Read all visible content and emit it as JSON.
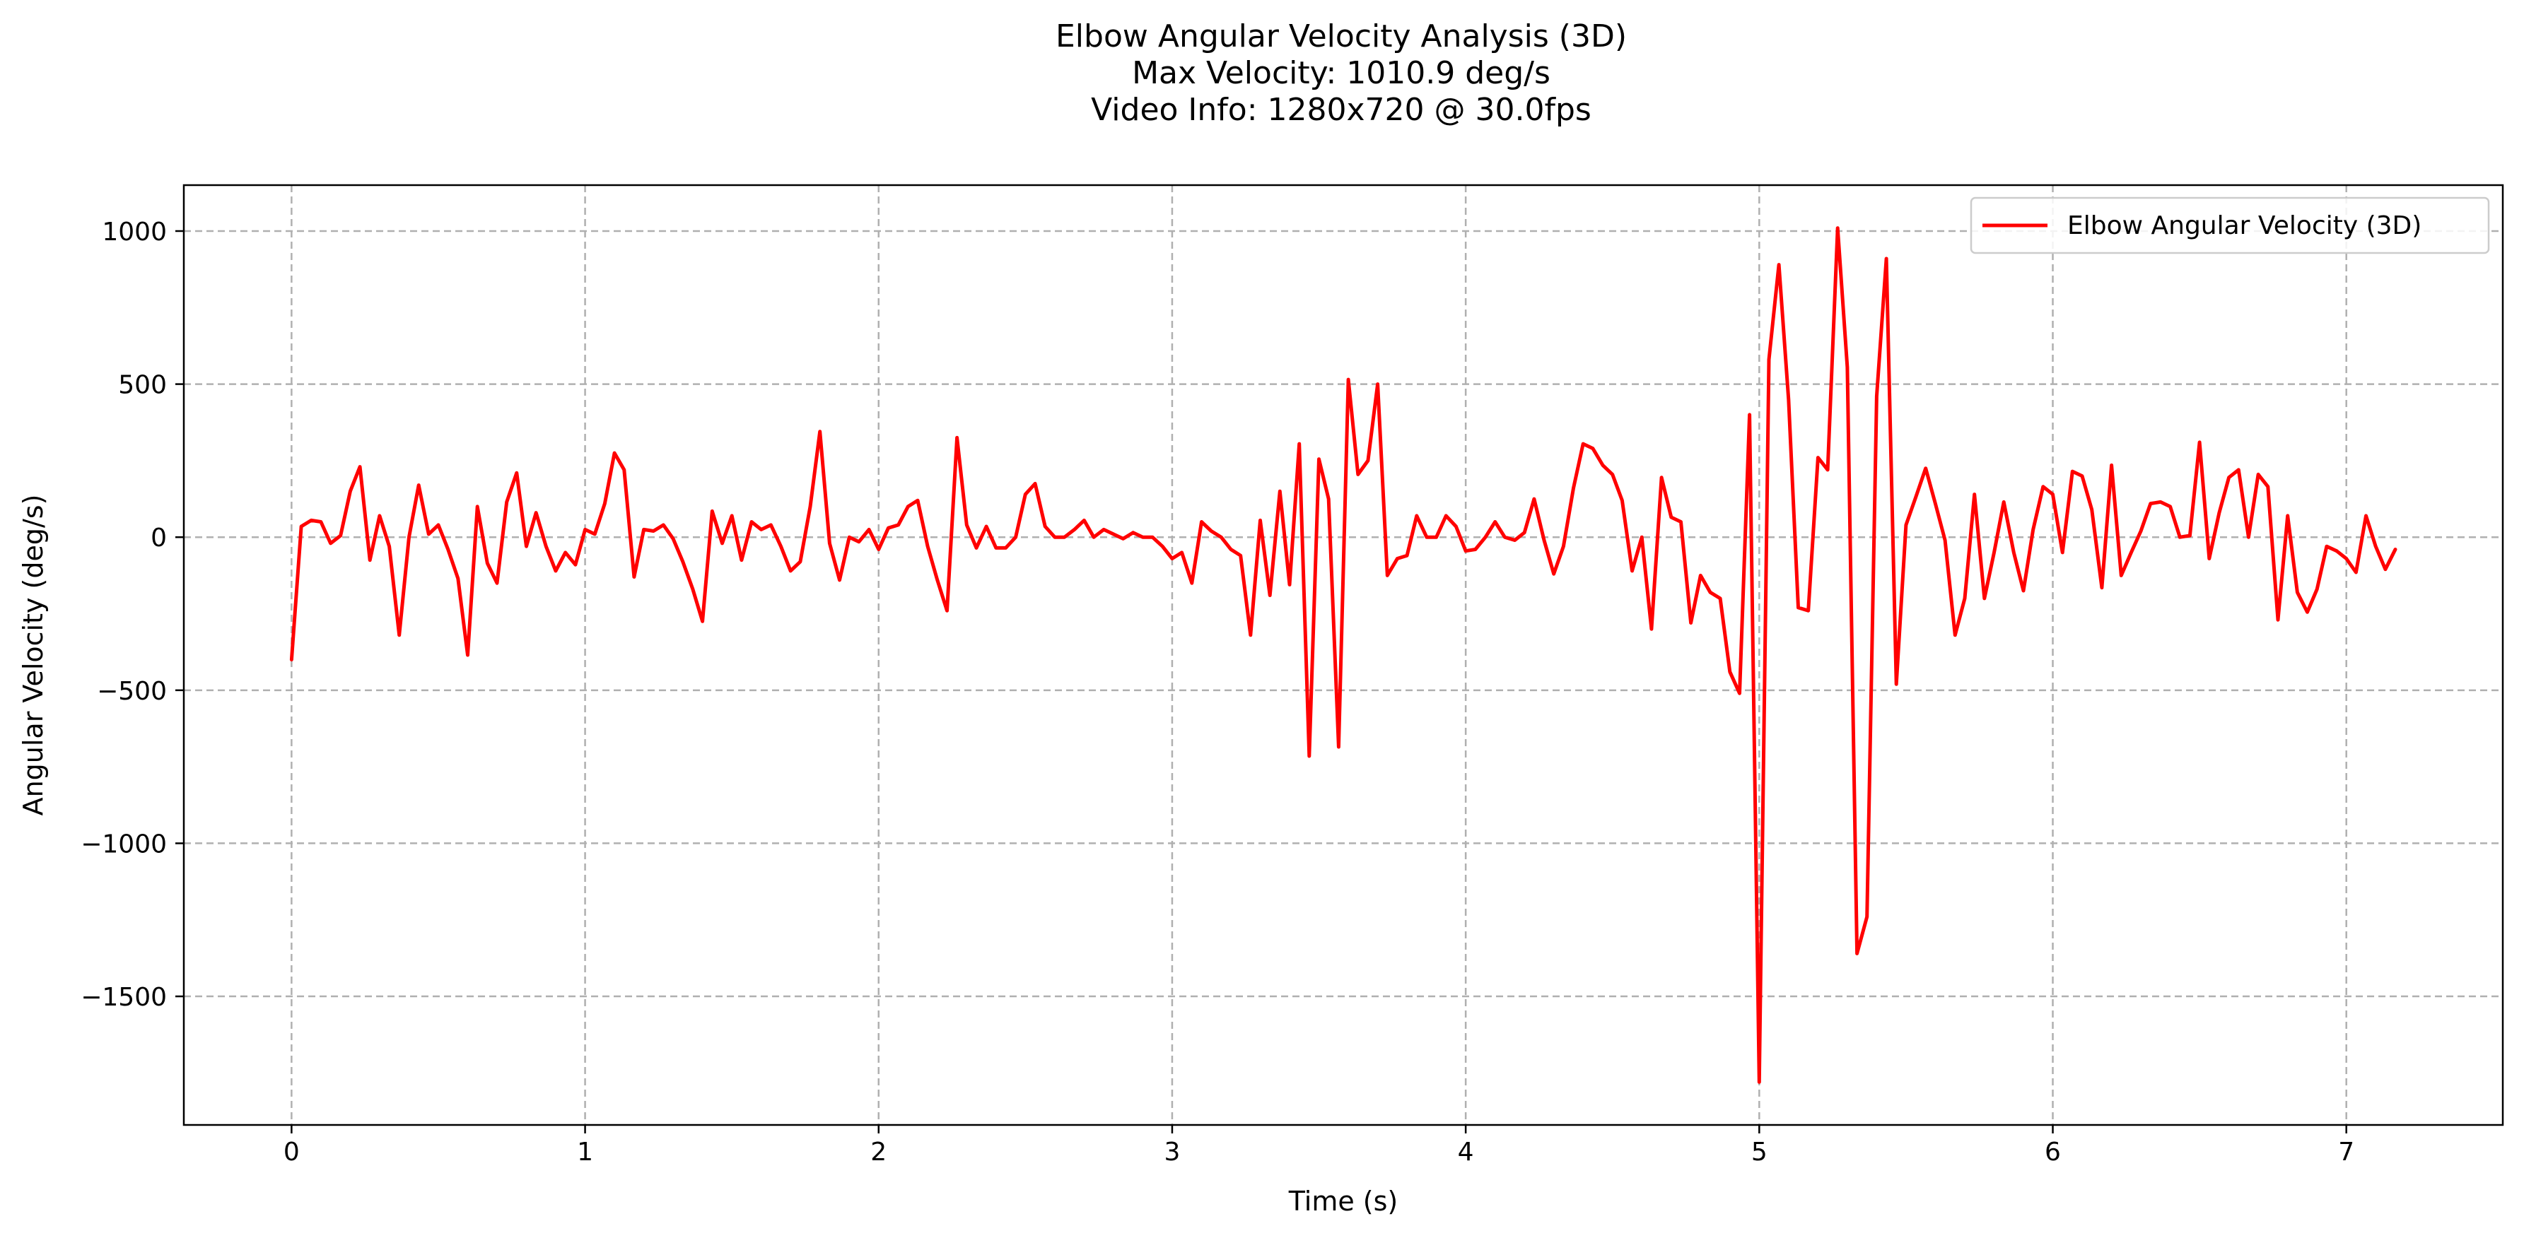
{
  "chart_data": {
    "type": "line",
    "title": [
      "Elbow Angular Velocity Analysis (3D)",
      "Max Velocity: 1010.9 deg/s",
      "Video Info: 1280x720 @ 30.0fps"
    ],
    "xlabel": "Time (s)",
    "ylabel": "Angular Velocity (deg/s)",
    "xlim": [
      -0.367,
      7.533
    ],
    "ylim": [
      -1920,
      1150
    ],
    "xticks": [
      0,
      1,
      2,
      3,
      4,
      5,
      6,
      7
    ],
    "yticks": [
      1000,
      500,
      0,
      -500,
      -1000,
      -1500
    ],
    "ytick_labels": [
      "1000",
      "500",
      "0",
      "−500",
      "−1000",
      "−1500"
    ],
    "grid": true,
    "legend": "upper-right",
    "series": [
      {
        "name": "Elbow Angular Velocity (3D)",
        "color": "#ff0000",
        "x": [
          0.0,
          0.033,
          0.067,
          0.1,
          0.133,
          0.167,
          0.2,
          0.233,
          0.267,
          0.3,
          0.333,
          0.367,
          0.4,
          0.433,
          0.467,
          0.5,
          0.533,
          0.567,
          0.6,
          0.633,
          0.667,
          0.7,
          0.733,
          0.767,
          0.8,
          0.833,
          0.867,
          0.9,
          0.933,
          0.967,
          1.0,
          1.033,
          1.067,
          1.1,
          1.133,
          1.167,
          1.2,
          1.233,
          1.267,
          1.3,
          1.333,
          1.367,
          1.4,
          1.433,
          1.467,
          1.5,
          1.533,
          1.567,
          1.6,
          1.633,
          1.667,
          1.7,
          1.733,
          1.767,
          1.8,
          1.833,
          1.867,
          1.9,
          1.933,
          1.967,
          2.0,
          2.033,
          2.067,
          2.1,
          2.133,
          2.167,
          2.2,
          2.233,
          2.267,
          2.3,
          2.333,
          2.367,
          2.4,
          2.433,
          2.467,
          2.5,
          2.533,
          2.567,
          2.6,
          2.633,
          2.667,
          2.7,
          2.733,
          2.767,
          2.8,
          2.833,
          2.867,
          2.9,
          2.933,
          2.967,
          3.0,
          3.033,
          3.067,
          3.1,
          3.133,
          3.167,
          3.2,
          3.233,
          3.267,
          3.3,
          3.333,
          3.367,
          3.4,
          3.433,
          3.467,
          3.5,
          3.533,
          3.567,
          3.6,
          3.633,
          3.667,
          3.7,
          3.733,
          3.767,
          3.8,
          3.833,
          3.867,
          3.9,
          3.933,
          3.967,
          4.0,
          4.033,
          4.067,
          4.1,
          4.133,
          4.167,
          4.2,
          4.233,
          4.267,
          4.3,
          4.333,
          4.367,
          4.4,
          4.433,
          4.467,
          4.5,
          4.533,
          4.567,
          4.6,
          4.633,
          4.667,
          4.7,
          4.733,
          4.767,
          4.8,
          4.833,
          4.867,
          4.9,
          4.933,
          4.967,
          5.0,
          5.033,
          5.067,
          5.1,
          5.133,
          5.167,
          5.2,
          5.233,
          5.267,
          5.3,
          5.333,
          5.367,
          5.4,
          5.433,
          5.467,
          5.5,
          5.533,
          5.567,
          5.6,
          5.633,
          5.667,
          5.7,
          5.733,
          5.767,
          5.8,
          5.833,
          5.867,
          5.9,
          5.933,
          5.967,
          6.0,
          6.033,
          6.067,
          6.1,
          6.133,
          6.167,
          6.2,
          6.233,
          6.267,
          6.3,
          6.333,
          6.367,
          6.4,
          6.433,
          6.467,
          6.5,
          6.533,
          6.567,
          6.6,
          6.633,
          6.667,
          6.7,
          6.733,
          6.767,
          6.8,
          6.833,
          6.867,
          6.9,
          6.933,
          6.967,
          7.0,
          7.033,
          7.067,
          7.1,
          7.133,
          7.167
        ],
        "y": [
          -400,
          35,
          55,
          50,
          -20,
          5,
          150,
          230,
          -75,
          70,
          -30,
          -320,
          0,
          170,
          10,
          40,
          -40,
          -135,
          -385,
          100,
          -85,
          -150,
          115,
          210,
          -30,
          80,
          -30,
          -110,
          -50,
          -90,
          25,
          10,
          110,
          275,
          220,
          -130,
          25,
          20,
          40,
          -5,
          -80,
          -170,
          -275,
          85,
          -20,
          70,
          -75,
          50,
          25,
          40,
          -30,
          -110,
          -80,
          100,
          345,
          -20,
          -140,
          0,
          -15,
          25,
          -40,
          30,
          40,
          100,
          120,
          -30,
          -140,
          -240,
          325,
          40,
          -35,
          35,
          -35,
          -35,
          0,
          140,
          175,
          35,
          0,
          0,
          25,
          55,
          0,
          25,
          10,
          -5,
          15,
          0,
          0,
          -30,
          -70,
          -50,
          -150,
          50,
          20,
          0,
          -40,
          -60,
          -320,
          55,
          -190,
          150,
          -155,
          305,
          -715,
          255,
          125,
          -685,
          515,
          205,
          250,
          500,
          -125,
          -70,
          -60,
          70,
          0,
          0,
          70,
          35,
          -45,
          -40,
          0,
          50,
          0,
          -10,
          15,
          125,
          -10,
          -120,
          -30,
          160,
          305,
          290,
          235,
          205,
          120,
          -110,
          0,
          -300,
          195,
          65,
          50,
          -280,
          -125,
          -180,
          -200,
          -440,
          -510,
          400,
          -1780,
          580,
          890,
          450,
          -230,
          -240,
          260,
          220,
          1010,
          555,
          -1360,
          -1240,
          460,
          910,
          -480,
          40,
          130,
          225,
          110,
          -10,
          -320,
          -200,
          140,
          -200,
          -50,
          115,
          -50,
          -175,
          25,
          165,
          140,
          -50,
          215,
          200,
          90,
          -165,
          235,
          -125,
          -50,
          20,
          110,
          115,
          100,
          0,
          5,
          310,
          -70,
          80,
          195,
          220,
          0,
          205,
          165,
          -270,
          70,
          -180,
          -245,
          -170,
          -30,
          -45,
          -70,
          -115,
          70,
          -30,
          -105,
          -40
        ]
      }
    ]
  }
}
